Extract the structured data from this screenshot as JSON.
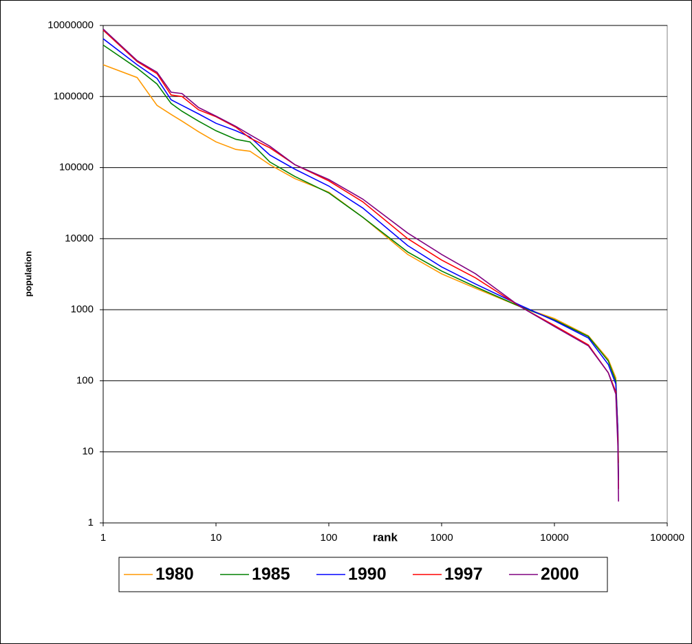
{
  "chart_data": {
    "type": "line",
    "x_label": "rank",
    "y_label": "population",
    "x": [
      1,
      2,
      3,
      4,
      5,
      7,
      10,
      15,
      20,
      30,
      50,
      100,
      200,
      500,
      1000,
      2000,
      5000,
      10000,
      20000,
      30000,
      35000,
      36500,
      37000
    ],
    "series": [
      {
        "name": "1980",
        "color": "#FF9900",
        "values": [
          2800000,
          1850000,
          750000,
          560000,
          450000,
          320000,
          230000,
          180000,
          170000,
          110000,
          70000,
          45000,
          20000,
          6000,
          3200,
          2000,
          1100,
          750,
          430,
          200,
          110,
          20,
          7
        ]
      },
      {
        "name": "1985",
        "color": "#008000",
        "values": [
          5300000,
          2500000,
          1500000,
          800000,
          620000,
          450000,
          330000,
          250000,
          230000,
          120000,
          75000,
          44000,
          20000,
          6500,
          3500,
          2100,
          1100,
          720,
          420,
          190,
          100,
          20,
          4
        ]
      },
      {
        "name": "1990",
        "color": "#0000FF",
        "values": [
          6500000,
          2800000,
          1800000,
          900000,
          750000,
          570000,
          420000,
          330000,
          270000,
          150000,
          95000,
          55000,
          27000,
          8000,
          4000,
          2300,
          1150,
          700,
          400,
          170,
          90,
          20,
          4
        ]
      },
      {
        "name": "1997",
        "color": "#FF0000",
        "values": [
          8600000,
          3100000,
          2100000,
          1050000,
          1000000,
          650000,
          520000,
          370000,
          260000,
          190000,
          110000,
          65000,
          33000,
          10000,
          5000,
          2800,
          1100,
          600,
          320,
          130,
          70,
          15,
          3
        ]
      },
      {
        "name": "2000",
        "color": "#800080",
        "values": [
          8900000,
          3200000,
          2200000,
          1150000,
          1100000,
          700000,
          530000,
          380000,
          290000,
          200000,
          110000,
          68000,
          36000,
          12000,
          6000,
          3200,
          1100,
          580,
          310,
          130,
          65,
          12,
          2
        ]
      }
    ],
    "xlim": [
      1,
      100000
    ],
    "xticks": [
      1,
      10,
      100,
      1000,
      10000,
      100000
    ],
    "x_log": true,
    "ylim": [
      1,
      10000000
    ],
    "yticks": [
      1,
      10,
      100,
      1000,
      10000,
      100000,
      1000000,
      10000000
    ],
    "y_log": true,
    "grid": true,
    "legend": "bottom"
  }
}
